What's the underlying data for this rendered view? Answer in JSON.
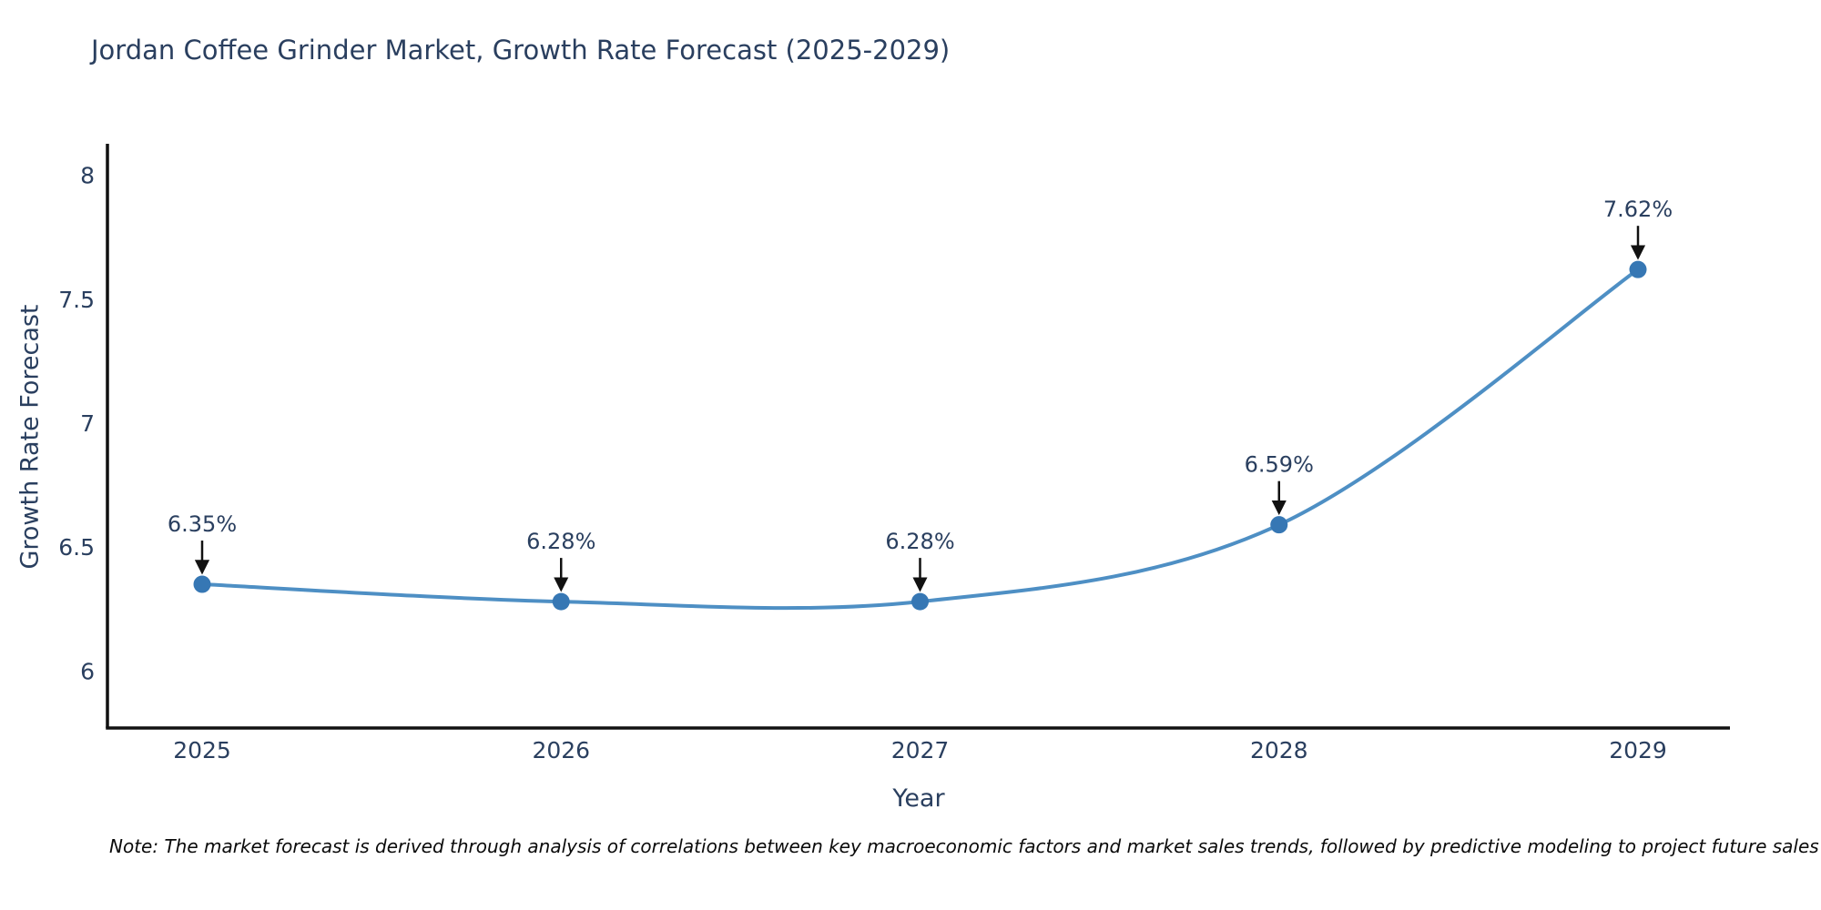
{
  "title": "Jordan Coffee Grinder Market, Growth Rate Forecast (2025-2029)",
  "note": "Note: The market forecast is derived through analysis of correlations between key macroeconomic factors and market sales trends, followed by predictive modeling to project future sales",
  "chart_data": {
    "type": "line",
    "title": "Jordan Coffee Grinder Market, Growth Rate Forecast (2025-2029)",
    "xlabel": "Year",
    "ylabel": "Growth Rate Forecast",
    "x": [
      2025,
      2026,
      2027,
      2028,
      2029
    ],
    "series": [
      {
        "name": "Growth Rate Forecast",
        "values": [
          6.35,
          6.28,
          6.28,
          6.59,
          7.62
        ]
      }
    ],
    "point_labels": [
      "6.35%",
      "6.28%",
      "6.28%",
      "6.59%",
      "7.62%"
    ],
    "yticks": [
      6,
      6.5,
      7,
      7.5,
      8
    ],
    "ylim": [
      5.77,
      8.12
    ],
    "grid": false,
    "legend": "none",
    "line_shape": "spline",
    "colors": {
      "line": "#4e8fc4",
      "marker": "#3677b4",
      "axis": "#111111",
      "text": "#2a3f5f",
      "annotation_arrow": "#111111"
    }
  }
}
